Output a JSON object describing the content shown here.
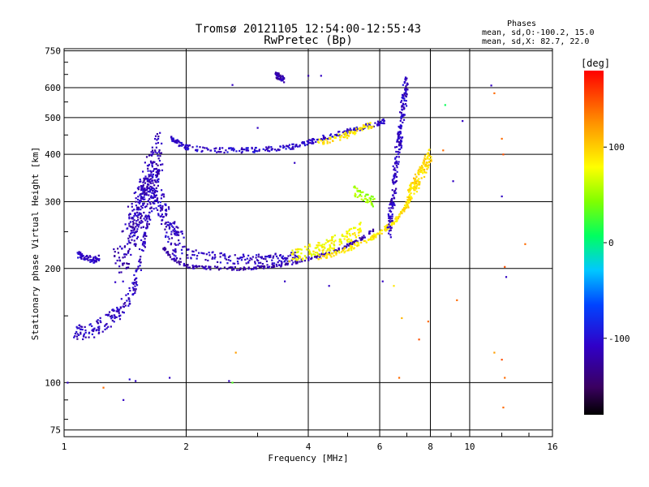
{
  "chart_data": {
    "type": "scatter",
    "title": "Tromsø 20121105 12:54:00-12:55:43",
    "subtitle": "RwPretec (Bp)",
    "xlabel": "Frequency [MHz]",
    "ylabel": "Stationary phase Virtual Height [km]",
    "x_scale": "log",
    "y_scale": "log",
    "xlim": [
      1,
      16
    ],
    "ylim": [
      72,
      760
    ],
    "grid": true,
    "x_ticks": [
      "1",
      "2",
      "4",
      "6",
      "8",
      "10",
      "16"
    ],
    "y_ticks": [
      "75",
      "100",
      "200",
      "300",
      "400",
      "500",
      "600",
      "750"
    ],
    "info": {
      "heading": "Phases",
      "line_o": "mean, sd,O:-100.2, 15.0",
      "line_x": "mean, sd,X: 82.7, 22.0"
    },
    "colorbar": {
      "label": "[deg]",
      "ticks": [
        "100",
        "0",
        "-100"
      ],
      "range": [
        -180,
        180
      ]
    },
    "traces": [
      {
        "x": [
          1.05,
          1.15,
          1.25,
          1.35,
          1.45,
          1.52,
          1.58,
          1.65,
          1.72
        ],
        "y": [
          135,
          136,
          143,
          152,
          168,
          198,
          245,
          300,
          370
        ],
        "phase": -110,
        "spread": 0.05
      },
      {
        "x": [
          1.08,
          1.12,
          1.18,
          1.22
        ],
        "y": [
          218,
          215,
          210,
          214
        ],
        "phase": -110,
        "spread": 0.02
      },
      {
        "x": [
          1.35,
          1.45,
          1.52,
          1.58,
          1.65,
          1.72
        ],
        "y": [
          200,
          240,
          280,
          320,
          360,
          420
        ],
        "phase": -115,
        "spread": 0.12
      },
      {
        "x": [
          1.45,
          1.55,
          1.65,
          1.75,
          1.85,
          1.95
        ],
        "y": [
          260,
          300,
          340,
          280,
          240,
          230
        ],
        "phase": -110,
        "spread": 0.1
      },
      {
        "x": [
          1.75,
          1.85,
          2.0,
          2.2,
          2.5,
          2.8,
          3.1,
          3.4,
          3.8,
          4.2,
          4.6,
          5.0,
          5.4,
          5.8
        ],
        "y": [
          228,
          212,
          203,
          201,
          200,
          200,
          202,
          204,
          209,
          215,
          222,
          230,
          240,
          253
        ],
        "phase": -120,
        "spread": 0.01
      },
      {
        "x": [
          4.2,
          4.6,
          5.0,
          5.4,
          5.8,
          6.2,
          6.5,
          6.8,
          7.0,
          7.2
        ],
        "y": [
          213,
          218,
          225,
          233,
          243,
          255,
          265,
          280,
          295,
          310
        ],
        "phase": 90,
        "spread": 0.015
      },
      {
        "x": [
          2.0,
          2.3,
          2.6,
          2.9,
          3.2,
          3.5,
          3.8
        ],
        "y": [
          220,
          215,
          212,
          212,
          212,
          213,
          215
        ],
        "phase": -110,
        "spread": 0.03
      },
      {
        "x": [
          3.6,
          3.9,
          4.2,
          4.5,
          4.8,
          5.1,
          5.4
        ],
        "y": [
          215,
          220,
          225,
          230,
          240,
          245,
          255
        ],
        "phase": 80,
        "spread": 0.04
      },
      {
        "x": [
          1.82,
          1.9,
          2.0,
          2.2,
          2.5,
          2.8,
          3.1,
          3.4,
          3.7,
          4.0,
          4.3,
          4.6,
          5.0,
          5.4,
          5.8,
          6.2
        ],
        "y": [
          445,
          430,
          418,
          412,
          410,
          410,
          412,
          415,
          420,
          430,
          440,
          450,
          460,
          470,
          480,
          490
        ],
        "phase": -105,
        "spread": 0.015
      },
      {
        "x": [
          4.2,
          4.6,
          5.0,
          5.4,
          5.8
        ],
        "y": [
          430,
          440,
          450,
          470,
          480
        ],
        "phase": 90,
        "spread": 0.02
      },
      {
        "x": [
          6.3,
          6.4,
          6.5,
          6.6,
          6.7,
          6.8,
          6.9,
          7.0
        ],
        "y": [
          250,
          280,
          320,
          380,
          440,
          500,
          560,
          620
        ],
        "phase": -110,
        "spread": 0.06
      },
      {
        "x": [
          7.0,
          7.2,
          7.4,
          7.6,
          7.8,
          8.0
        ],
        "y": [
          300,
          320,
          340,
          360,
          380,
          400
        ],
        "phase": 95,
        "spread": 0.05
      },
      {
        "x": [
          5.2,
          5.5,
          5.8
        ],
        "y": [
          320,
          310,
          300
        ],
        "phase": 50,
        "spread": 0.03
      },
      {
        "x": [
          3.3,
          3.4,
          3.5
        ],
        "y": [
          650,
          640,
          630
        ],
        "phase": -120,
        "spread": 0.02
      }
    ],
    "scatter_points": [
      {
        "x": 1.02,
        "y": 100,
        "phase": -110
      },
      {
        "x": 1.25,
        "y": 97,
        "phase": 140
      },
      {
        "x": 1.4,
        "y": 90,
        "phase": -110
      },
      {
        "x": 1.45,
        "y": 102,
        "phase": -100
      },
      {
        "x": 1.5,
        "y": 101,
        "phase": -110
      },
      {
        "x": 1.82,
        "y": 103,
        "phase": -110
      },
      {
        "x": 2.55,
        "y": 101,
        "phase": -110
      },
      {
        "x": 2.6,
        "y": 100,
        "phase": 30
      },
      {
        "x": 2.65,
        "y": 120,
        "phase": 120
      },
      {
        "x": 2.6,
        "y": 610,
        "phase": -110
      },
      {
        "x": 4.3,
        "y": 645,
        "phase": -110
      },
      {
        "x": 4.0,
        "y": 645,
        "phase": -120
      },
      {
        "x": 6.1,
        "y": 185,
        "phase": -110
      },
      {
        "x": 6.5,
        "y": 180,
        "phase": 90
      },
      {
        "x": 6.7,
        "y": 103,
        "phase": 140
      },
      {
        "x": 6.8,
        "y": 148,
        "phase": 110
      },
      {
        "x": 7.5,
        "y": 130,
        "phase": 150
      },
      {
        "x": 7.9,
        "y": 145,
        "phase": 140
      },
      {
        "x": 8.7,
        "y": 540,
        "phase": 10
      },
      {
        "x": 9.6,
        "y": 490,
        "phase": -110
      },
      {
        "x": 11.3,
        "y": 608,
        "phase": -110
      },
      {
        "x": 11.5,
        "y": 580,
        "phase": 140
      },
      {
        "x": 12.0,
        "y": 440,
        "phase": 140
      },
      {
        "x": 12.1,
        "y": 400,
        "phase": 150
      },
      {
        "x": 12.0,
        "y": 310,
        "phase": -110
      },
      {
        "x": 12.2,
        "y": 202,
        "phase": 150
      },
      {
        "x": 12.3,
        "y": 190,
        "phase": -110
      },
      {
        "x": 11.5,
        "y": 120,
        "phase": 120
      },
      {
        "x": 12.0,
        "y": 115,
        "phase": 150
      },
      {
        "x": 12.2,
        "y": 103,
        "phase": 140
      },
      {
        "x": 12.1,
        "y": 86,
        "phase": 140
      },
      {
        "x": 13.7,
        "y": 232,
        "phase": 140
      },
      {
        "x": 9.3,
        "y": 165,
        "phase": 140
      },
      {
        "x": 9.1,
        "y": 340,
        "phase": -110
      },
      {
        "x": 8.6,
        "y": 410,
        "phase": 140
      },
      {
        "x": 3.0,
        "y": 470,
        "phase": -110
      },
      {
        "x": 3.7,
        "y": 380,
        "phase": -110
      },
      {
        "x": 3.5,
        "y": 185,
        "phase": -110
      },
      {
        "x": 4.5,
        "y": 180,
        "phase": -110
      }
    ]
  }
}
